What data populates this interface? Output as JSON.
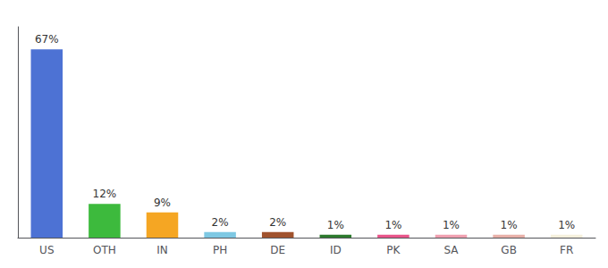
{
  "chart_data": {
    "type": "bar",
    "categories": [
      "US",
      "OTH",
      "IN",
      "PH",
      "DE",
      "ID",
      "PK",
      "SA",
      "GB",
      "FR"
    ],
    "values": [
      67,
      12,
      9,
      2,
      2,
      1,
      1,
      1,
      1,
      1
    ],
    "value_labels": [
      "67%",
      "12%",
      "9%",
      "2%",
      "2%",
      "1%",
      "1%",
      "1%",
      "1%",
      "1%"
    ],
    "colors": [
      "#4d72d4",
      "#3dba3d",
      "#f5a623",
      "#7ec8e3",
      "#a0522d",
      "#2d7a2d",
      "#e8558a",
      "#f0a0b0",
      "#e8b0a8",
      "#f5f0dc"
    ],
    "ylim": [
      0,
      75
    ],
    "data_labels": true,
    "tick_labels": "x",
    "grid": false
  }
}
